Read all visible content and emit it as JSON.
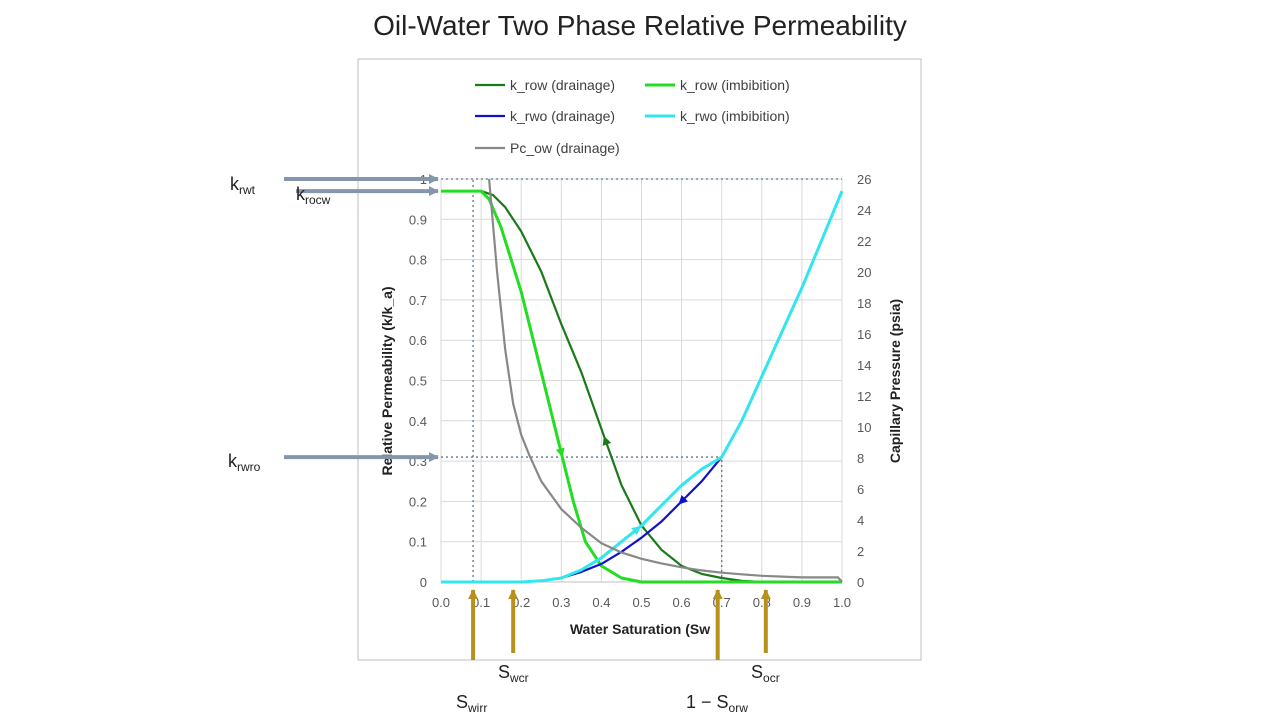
{
  "chart_data": {
    "type": "line",
    "title": "Oil-Water Two Phase Relative Permeability",
    "xlabel": "Water Saturation (Sw",
    "ylabel_left": "Relative Permeability (k/k_a)",
    "ylabel_right": "Capillary Pressure (psia)",
    "xlim": [
      0,
      1
    ],
    "ylim_left": [
      0,
      1
    ],
    "ylim_right": [
      0,
      26
    ],
    "x_ticks": [
      "0.0",
      "0.1",
      "0.2",
      "0.3",
      "0.4",
      "0.5",
      "0.6",
      "0.7",
      "0.8",
      "0.9",
      "1.0"
    ],
    "y_left_ticks": [
      "0",
      "0.1",
      "0.2",
      "0.3",
      "0.4",
      "0.5",
      "0.6",
      "0.7",
      "0.8",
      "0.9",
      "1"
    ],
    "y_right_ticks": [
      "0",
      "2",
      "4",
      "6",
      "8",
      "10",
      "12",
      "14",
      "16",
      "18",
      "20",
      "22",
      "24",
      "26"
    ],
    "grid": true,
    "legend_position": "top",
    "series": [
      {
        "name": "k_row (drainage)",
        "color": "#1a7a1a",
        "axis": "left",
        "points": [
          [
            0,
            0.97
          ],
          [
            0.06,
            0.97
          ],
          [
            0.1,
            0.97
          ],
          [
            0.13,
            0.96
          ],
          [
            0.16,
            0.93
          ],
          [
            0.2,
            0.87
          ],
          [
            0.25,
            0.77
          ],
          [
            0.3,
            0.64
          ],
          [
            0.35,
            0.52
          ],
          [
            0.4,
            0.38
          ],
          [
            0.45,
            0.24
          ],
          [
            0.5,
            0.14
          ],
          [
            0.55,
            0.08
          ],
          [
            0.6,
            0.04
          ],
          [
            0.65,
            0.02
          ],
          [
            0.7,
            0.01
          ],
          [
            0.75,
            0.003
          ],
          [
            0.8,
            0
          ],
          [
            1,
            0
          ]
        ],
        "arrow_at": 0.41,
        "arrow_dir": "up"
      },
      {
        "name": "k_row (imbibition)",
        "color": "#22dd22",
        "axis": "left",
        "points": [
          [
            0,
            0.97
          ],
          [
            0.06,
            0.97
          ],
          [
            0.1,
            0.97
          ],
          [
            0.12,
            0.95
          ],
          [
            0.15,
            0.88
          ],
          [
            0.2,
            0.72
          ],
          [
            0.25,
            0.52
          ],
          [
            0.3,
            0.32
          ],
          [
            0.33,
            0.2
          ],
          [
            0.36,
            0.1
          ],
          [
            0.4,
            0.04
          ],
          [
            0.45,
            0.01
          ],
          [
            0.5,
            0
          ],
          [
            1,
            0
          ]
        ],
        "arrow_at": 0.3,
        "arrow_dir": "down"
      },
      {
        "name": "k_rwo (drainage)",
        "color": "#1111cc",
        "axis": "left",
        "points": [
          [
            0,
            0
          ],
          [
            0.2,
            0
          ],
          [
            0.25,
            0.003
          ],
          [
            0.3,
            0.01
          ],
          [
            0.35,
            0.025
          ],
          [
            0.4,
            0.045
          ],
          [
            0.45,
            0.075
          ],
          [
            0.5,
            0.11
          ],
          [
            0.55,
            0.15
          ],
          [
            0.6,
            0.2
          ],
          [
            0.65,
            0.25
          ],
          [
            0.7,
            0.31
          ]
        ],
        "arrow_at": 0.6,
        "arrow_dir": "down"
      },
      {
        "name": "k_rwo (imbibition)",
        "color": "#33e6ee",
        "axis": "left",
        "points": [
          [
            0,
            0
          ],
          [
            0.2,
            0
          ],
          [
            0.25,
            0.003
          ],
          [
            0.3,
            0.01
          ],
          [
            0.35,
            0.03
          ],
          [
            0.4,
            0.06
          ],
          [
            0.45,
            0.1
          ],
          [
            0.5,
            0.14
          ],
          [
            0.55,
            0.19
          ],
          [
            0.6,
            0.24
          ],
          [
            0.65,
            0.28
          ],
          [
            0.7,
            0.31
          ],
          [
            0.75,
            0.4
          ],
          [
            0.8,
            0.51
          ],
          [
            0.85,
            0.62
          ],
          [
            0.9,
            0.73
          ],
          [
            0.95,
            0.85
          ],
          [
            1,
            0.97
          ]
        ],
        "arrow_at": 0.49,
        "arrow_dir": "up"
      },
      {
        "name": "Pc_ow (drainage)",
        "color": "#888888",
        "axis": "right",
        "points": [
          [
            0.12,
            26
          ],
          [
            0.14,
            20
          ],
          [
            0.16,
            15
          ],
          [
            0.18,
            11.5
          ],
          [
            0.2,
            9.5
          ],
          [
            0.22,
            8.2
          ],
          [
            0.25,
            6.5
          ],
          [
            0.3,
            4.7
          ],
          [
            0.35,
            3.5
          ],
          [
            0.4,
            2.5
          ],
          [
            0.45,
            1.9
          ],
          [
            0.5,
            1.5
          ],
          [
            0.55,
            1.2
          ],
          [
            0.6,
            0.95
          ],
          [
            0.65,
            0.75
          ],
          [
            0.7,
            0.6
          ],
          [
            0.75,
            0.5
          ],
          [
            0.8,
            0.4
          ],
          [
            0.85,
            0.35
          ],
          [
            0.9,
            0.3
          ],
          [
            0.99,
            0.3
          ],
          [
            1,
            0
          ]
        ]
      }
    ],
    "reference_lines": {
      "dotted": [
        {
          "from": [
            0,
            1
          ],
          "to": [
            1,
            1
          ]
        },
        {
          "from": [
            0,
            0.31
          ],
          "to": [
            0.7,
            0.31
          ]
        },
        {
          "from": [
            0.08,
            0
          ],
          "to": [
            0.08,
            1
          ]
        },
        {
          "from": [
            0.7,
            0
          ],
          "to": [
            0.7,
            0.31
          ]
        }
      ]
    },
    "annotations": {
      "left": [
        {
          "base": "k",
          "sub": "rwt",
          "y": 1
        },
        {
          "base": "k",
          "sub": "rocw",
          "y": 0.97
        },
        {
          "base": "k",
          "sub": "rwro",
          "y": 0.31
        }
      ],
      "bottom": [
        {
          "base": "S",
          "sub": "wirr",
          "x": 0.08,
          "prefix": ""
        },
        {
          "base": "S",
          "sub": "wcr",
          "x": 0.18,
          "prefix": ""
        },
        {
          "base": "S",
          "sub": "orw",
          "x": 0.69,
          "prefix": "1 − "
        },
        {
          "base": "S",
          "sub": "ocr",
          "x": 0.81,
          "prefix": ""
        }
      ],
      "arrow_color_left": "#8496ab",
      "arrow_color_bottom": "#b8901c"
    }
  }
}
